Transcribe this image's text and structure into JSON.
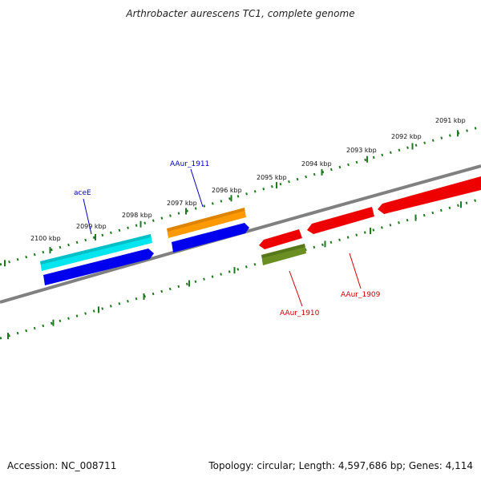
{
  "title": "Arthrobacter aurescens TC1, complete genome",
  "footer": {
    "accession": "Accession: NC_008711",
    "summary": "Topology: circular; Length: 4,597,686 bp; Genes: 4,114"
  },
  "scale_labels": [
    "2100 kbp",
    "2099 kbp",
    "2098 kbp",
    "2097 kbp",
    "2096 kbp",
    "2095 kbp",
    "2094 kbp",
    "2093 kbp",
    "2092 kbp",
    "2091 kbp"
  ],
  "gene_labels": [
    {
      "text": "aceE",
      "color": "#0000bb"
    },
    {
      "text": "AAur_1911",
      "color": "#0000bb"
    },
    {
      "text": "AAur_1910",
      "color": "#cc0000"
    },
    {
      "text": "AAur_1909",
      "color": "#cc0000"
    }
  ],
  "colors": {
    "backbone": "#808080",
    "scale": "#1e7a1e",
    "cyan_feature": "#00e5ee",
    "blue_cds": "#0000ee",
    "orange_feature": "#ff9900",
    "red_cds": "#ee0000",
    "olive_feature": "#6b8e23"
  }
}
